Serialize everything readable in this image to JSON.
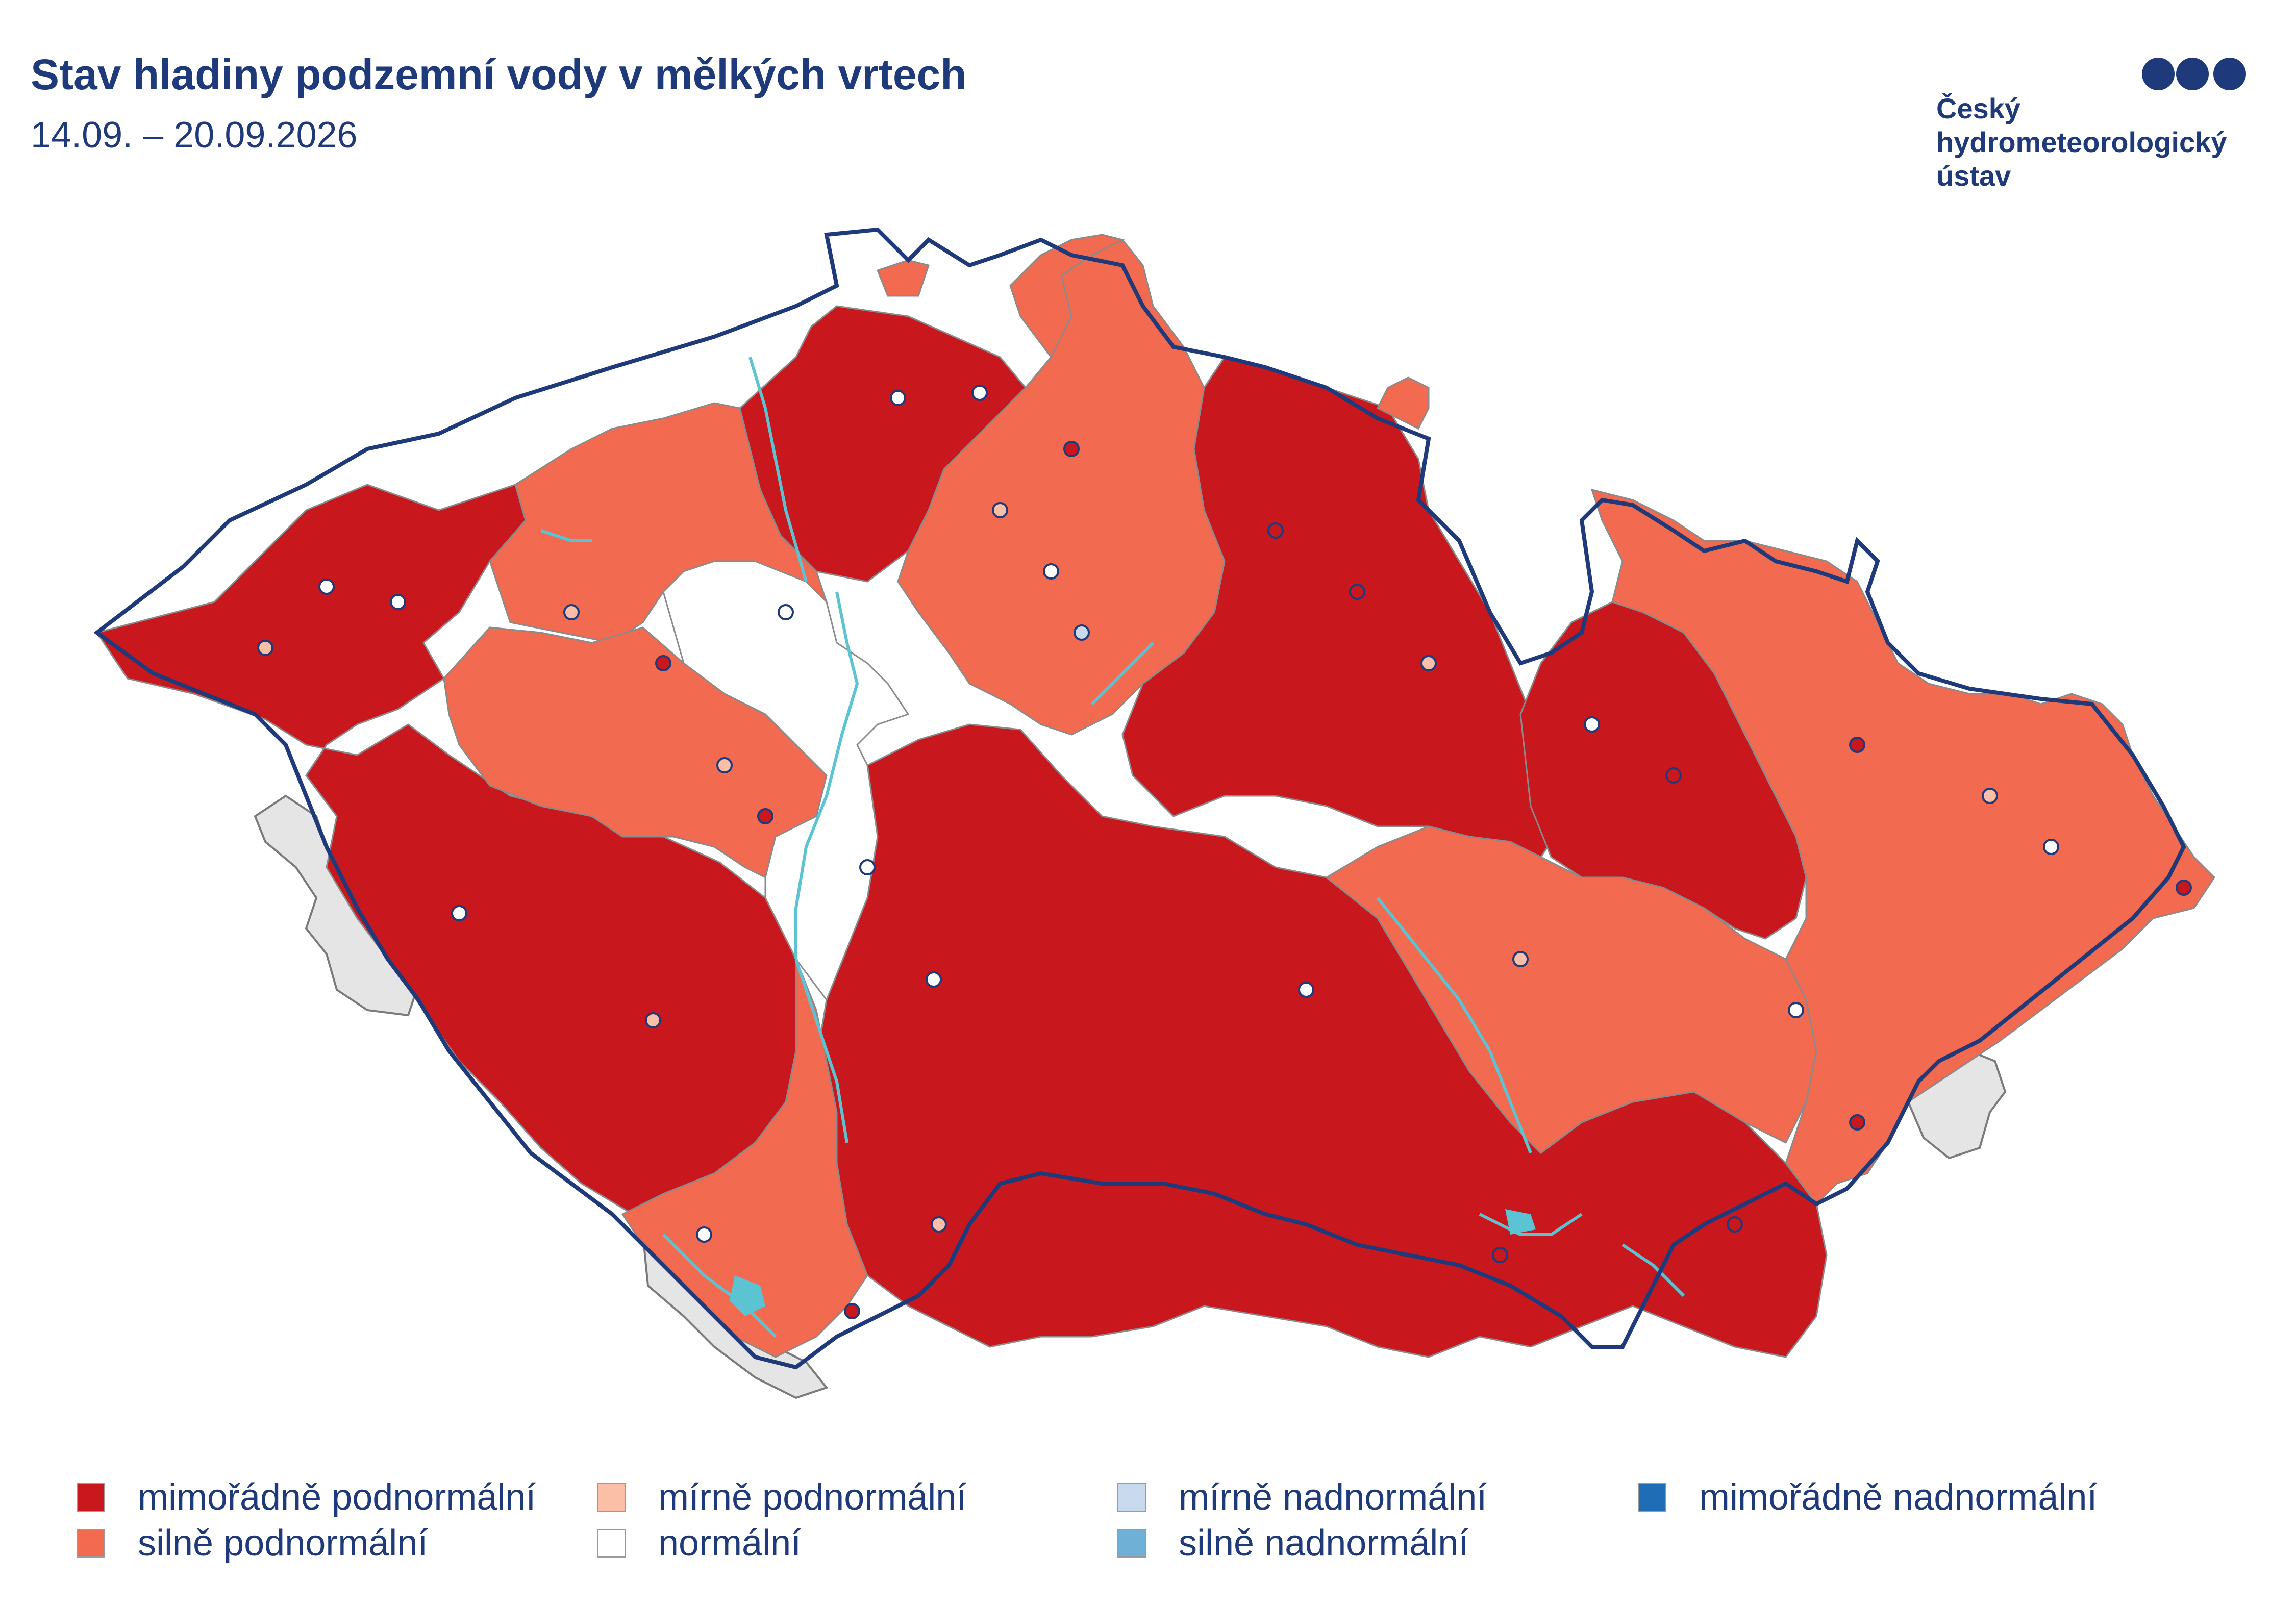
{
  "header": {
    "title": "Stav hladiny podzemní vody v mělkých vrtech",
    "subtitle": "14.09. – 20.09.2026"
  },
  "logo": {
    "line1": "Český",
    "line2": "hydrometeorologický",
    "line3": "ústav",
    "icon": "chmi-dots-icon",
    "color": "#1f3a7a"
  },
  "legend": [
    {
      "label": "mimořádně podnormální",
      "color": "#c8181e"
    },
    {
      "label": "silně podnormální",
      "color": "#f26a4f"
    },
    {
      "label": "mírně podnormální",
      "color": "#fbbea6"
    },
    {
      "label": "normální",
      "color": "#ffffff"
    },
    {
      "label": "mírně nadnormální",
      "color": "#c9d9ee"
    },
    {
      "label": "silně nadnormální",
      "color": "#6fb1d6"
    },
    {
      "label": "mimořádně nadnormální",
      "color": "#1f6db5"
    }
  ],
  "map_colors": {
    "border": "#1f3a7a",
    "river": "#5bc3d2",
    "neighbour": "#e5e5e5",
    "basin_line": "#8a8a8a"
  }
}
